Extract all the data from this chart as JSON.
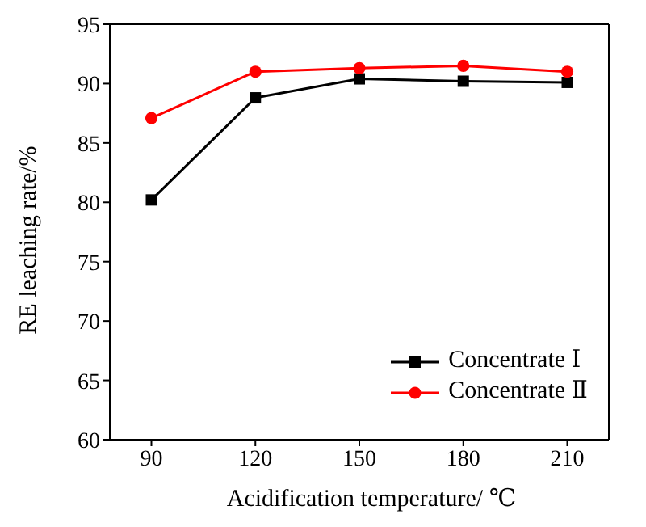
{
  "chart_data": {
    "type": "line",
    "xlabel": "Acidification temperature/ ℃",
    "ylabel": "RE leaching rate/%",
    "x": [
      90,
      120,
      150,
      180,
      210
    ],
    "series": [
      {
        "name": "Concentrate Ⅰ",
        "color": "#000000",
        "marker": "square",
        "values": [
          80.2,
          88.8,
          90.4,
          90.2,
          90.1
        ]
      },
      {
        "name": "Concentrate Ⅱ",
        "color": "#ff0000",
        "marker": "circle",
        "values": [
          87.1,
          91.0,
          91.3,
          91.5,
          91.0
        ]
      }
    ],
    "xlim": [
      78,
      222
    ],
    "xticks": [
      90,
      120,
      150,
      180,
      210
    ],
    "ylim": [
      60,
      95
    ],
    "yticks": [
      60,
      65,
      70,
      75,
      80,
      85,
      90,
      95
    ],
    "grid": false,
    "legend": "bottom right"
  }
}
